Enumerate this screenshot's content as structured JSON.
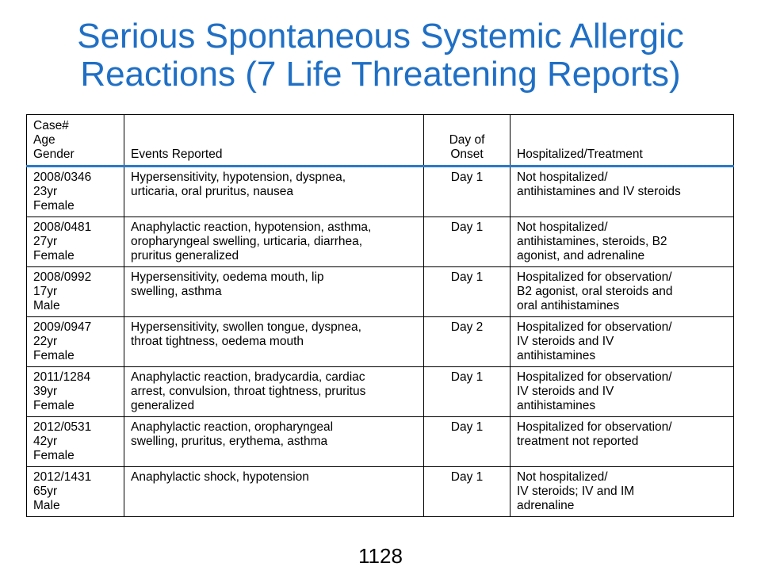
{
  "title": {
    "line1": "Serious Spontaneous Systemic Allergic",
    "line2": "Reactions (7 Life Threatening Reports)"
  },
  "table": {
    "headers": {
      "case_line1": "Case#",
      "case_line2": "Age",
      "case_line3": "Gender",
      "events": "Events Reported",
      "onset_line1": "Day of",
      "onset_line2": "Onset",
      "treatment": "Hospitalized/Treatment"
    },
    "rows": [
      {
        "case": "2008/0346",
        "age": "23yr",
        "gender": "Female",
        "events": [
          "Hypersensitivity, hypotension, dyspnea,",
          "urticaria, oral pruritus, nausea"
        ],
        "onset": "Day 1",
        "treatment": [
          "Not hospitalized/",
          "antihistamines and IV steroids"
        ]
      },
      {
        "case": "2008/0481",
        "age": "27yr",
        "gender": "Female",
        "events": [
          "Anaphylactic reaction, hypotension, asthma,",
          "oropharyngeal swelling, urticaria, diarrhea,",
          "pruritus generalized"
        ],
        "onset": "Day 1",
        "treatment": [
          "Not hospitalized/",
          "antihistamines, steroids, B2",
          "agonist, and adrenaline"
        ]
      },
      {
        "case": "2008/0992",
        "age": "17yr",
        "gender": "Male",
        "events": [
          "Hypersensitivity, oedema mouth, lip",
          "swelling, asthma"
        ],
        "onset": "Day 1",
        "treatment": [
          "Hospitalized for observation/",
          "B2 agonist, oral steroids and",
          "oral antihistamines"
        ]
      },
      {
        "case": "2009/0947",
        "age": "22yr",
        "gender": "Female",
        "events": [
          "Hypersensitivity, swollen tongue, dyspnea,",
          "throat tightness, oedema mouth"
        ],
        "onset": "Day 2",
        "treatment": [
          "Hospitalized for observation/",
          "IV steroids and IV",
          "antihistamines"
        ]
      },
      {
        "case": "2011/1284",
        "age": "39yr",
        "gender": "Female",
        "events": [
          "Anaphylactic reaction, bradycardia, cardiac",
          "arrest, convulsion, throat tightness, pruritus",
          "generalized"
        ],
        "onset": "Day 1",
        "treatment": [
          "Hospitalized for observation/",
          "IV steroids and IV",
          "antihistamines"
        ]
      },
      {
        "case": "2012/0531",
        "age": "42yr",
        "gender": "Female",
        "events": [
          "Anaphylactic reaction, oropharyngeal",
          "swelling, pruritus, erythema, asthma"
        ],
        "onset": "Day 1",
        "treatment": [
          "Hospitalized for observation/",
          "treatment not reported"
        ]
      },
      {
        "case": "2012/1431",
        "age": "65yr",
        "gender": "Male",
        "events": [
          "Anaphylactic shock, hypotension"
        ],
        "onset": "Day 1",
        "treatment": [
          "Not hospitalized/",
          "IV steroids; IV and IM",
          "adrenaline"
        ]
      }
    ]
  },
  "footer": {
    "page_number": "1128"
  },
  "colors": {
    "title": "#1f6fc5",
    "header_rule": "#2a7ac8"
  }
}
